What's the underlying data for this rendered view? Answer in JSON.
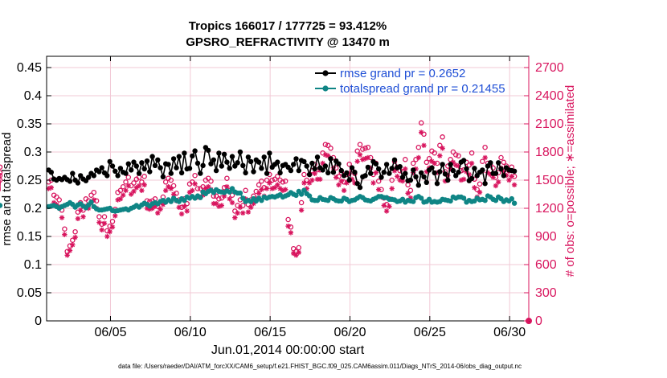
{
  "chart_data": {
    "type": "line",
    "title_line1": "Tropics 166017 / 177725 = 93.412%",
    "title_line2": "GPSRO_REFRACTIVITY @ 13470 m",
    "xlabel": "Jun.01,2014 00:00:00 start",
    "ylabel_left": "rmse and totalspread",
    "ylabel_right": "# of obs: o=possible; ∗=assimilated",
    "footer": "data file: /Users/raeder/DAI/ATM_forcXX/CAM6_setup/f.e21.FHIST_BGC.f09_025.CAM6assim.011/Diags_NTrS_2014-06/obs_diag_output.nc",
    "x_range": [
      1.0,
      31.2
    ],
    "y_left_range": [
      0,
      0.47
    ],
    "y_right_range": [
      0,
      2820
    ],
    "x_ticks": [
      5,
      10,
      15,
      20,
      25,
      30
    ],
    "x_tick_labels": [
      "06/05",
      "06/10",
      "06/15",
      "06/20",
      "06/25",
      "06/30"
    ],
    "y_left_ticks": [
      0,
      0.05,
      0.1,
      0.15,
      0.2,
      0.25,
      0.3,
      0.35,
      0.4,
      0.45
    ],
    "y_left_tick_labels": [
      "0",
      "0.05",
      "0.1",
      "0.15",
      "0.2",
      "0.25",
      "0.3",
      "0.35",
      "0.4",
      "0.45"
    ],
    "y_right_ticks": [
      0,
      300,
      600,
      900,
      1200,
      1500,
      1800,
      2100,
      2400,
      2700
    ],
    "y_right_tick_labels": [
      "0",
      "300",
      "600",
      "900",
      "1200",
      "1500",
      "1800",
      "2100",
      "2400",
      "2700"
    ],
    "colors": {
      "rmse": "#000000",
      "spread": "#0f8585",
      "obs": "#d8155e",
      "legend_text": "#1f4fd6",
      "grid": "#f2c9d6",
      "axis": "#000000"
    },
    "rmse": {
      "name": "rmse grand pr = 0.2652",
      "y": [
        0.268,
        0.264,
        0.252,
        0.25,
        0.253,
        0.251,
        0.255,
        0.251,
        0.248,
        0.262,
        0.25,
        0.245,
        0.258,
        0.252,
        0.249,
        0.255,
        0.262,
        0.258,
        0.268,
        0.265,
        0.272,
        0.263,
        0.258,
        0.283,
        0.275,
        0.266,
        0.258,
        0.271,
        0.264,
        0.262,
        0.279,
        0.268,
        0.282,
        0.275,
        0.262,
        0.281,
        0.27,
        0.284,
        0.265,
        0.292,
        0.276,
        0.286,
        0.272,
        0.256,
        0.279,
        0.278,
        0.262,
        0.288,
        0.272,
        0.292,
        0.263,
        0.298,
        0.27,
        0.271,
        0.293,
        0.302,
        0.28,
        0.262,
        0.276,
        0.308,
        0.303,
        0.279,
        0.286,
        0.267,
        0.298,
        0.275,
        0.296,
        0.282,
        0.271,
        0.292,
        0.275,
        0.281,
        0.3,
        0.276,
        0.263,
        0.291,
        0.283,
        0.265,
        0.286,
        0.282,
        0.271,
        0.291,
        0.262,
        0.298,
        0.273,
        0.278,
        0.282,
        0.263,
        0.276,
        0.278,
        0.273,
        0.267,
        0.278,
        0.288,
        0.267,
        0.285,
        0.283,
        0.275,
        0.26,
        0.28,
        0.27,
        0.291,
        0.272,
        0.268,
        0.275,
        0.263,
        0.288,
        0.264,
        0.284,
        0.279,
        0.267,
        0.258,
        0.263,
        0.25,
        0.272,
        0.264,
        0.244,
        0.237,
        0.256,
        0.258,
        0.273,
        0.262,
        0.283,
        0.279,
        0.27,
        0.255,
        0.264,
        0.278,
        0.262,
        0.271,
        0.286,
        0.272,
        0.274,
        0.255,
        0.262,
        0.249,
        0.25,
        0.268,
        0.256,
        0.241,
        0.263,
        0.256,
        0.246,
        0.268,
        0.272,
        0.263,
        0.244,
        0.265,
        0.278,
        0.261,
        0.25,
        0.278,
        0.267,
        0.258,
        0.264,
        0.282,
        0.285,
        0.27,
        0.249,
        0.253,
        0.271,
        0.258,
        0.264,
        0.268,
        0.244,
        0.275,
        0.281,
        0.262,
        0.262,
        0.281,
        0.27,
        0.258,
        0.272,
        0.268,
        0.267,
        0.266
      ]
    },
    "spread": {
      "name": "totalspread grand pr = 0.21455",
      "y": [
        0.203,
        0.204,
        0.205,
        0.203,
        0.2,
        0.203,
        0.205,
        0.207,
        0.21,
        0.207,
        0.202,
        0.206,
        0.208,
        0.204,
        0.201,
        0.206,
        0.211,
        0.203,
        0.199,
        0.197,
        0.197,
        0.198,
        0.199,
        0.2,
        0.196,
        0.195,
        0.196,
        0.197,
        0.198,
        0.199,
        0.197,
        0.2,
        0.202,
        0.205,
        0.202,
        0.206,
        0.209,
        0.207,
        0.204,
        0.208,
        0.21,
        0.208,
        0.212,
        0.214,
        0.211,
        0.215,
        0.212,
        0.218,
        0.214,
        0.212,
        0.217,
        0.214,
        0.22,
        0.218,
        0.221,
        0.218,
        0.222,
        0.219,
        0.229,
        0.226,
        0.23,
        0.232,
        0.228,
        0.233,
        0.23,
        0.229,
        0.228,
        0.231,
        0.229,
        0.235,
        0.229,
        0.227,
        0.227,
        0.218,
        0.212,
        0.214,
        0.212,
        0.217,
        0.213,
        0.218,
        0.214,
        0.22,
        0.218,
        0.22,
        0.221,
        0.22,
        0.222,
        0.224,
        0.22,
        0.222,
        0.224,
        0.228,
        0.225,
        0.223,
        0.23,
        0.225,
        0.232,
        0.226,
        0.222,
        0.215,
        0.214,
        0.214,
        0.219,
        0.216,
        0.215,
        0.214,
        0.219,
        0.217,
        0.214,
        0.213,
        0.213,
        0.218,
        0.216,
        0.212,
        0.214,
        0.215,
        0.218,
        0.221,
        0.219,
        0.215,
        0.214,
        0.213,
        0.216,
        0.218,
        0.221,
        0.221,
        0.219,
        0.219,
        0.216,
        0.216,
        0.215,
        0.212,
        0.213,
        0.216,
        0.211,
        0.214,
        0.213,
        0.212,
        0.219,
        0.221,
        0.218,
        0.211,
        0.212,
        0.216,
        0.211,
        0.212,
        0.211,
        0.212,
        0.216,
        0.215,
        0.214,
        0.213,
        0.22,
        0.218,
        0.22,
        0.22,
        0.218,
        0.211,
        0.214,
        0.212,
        0.213,
        0.218,
        0.215,
        0.216,
        0.214,
        0.222,
        0.22,
        0.216,
        0.214,
        0.22,
        0.217,
        0.212,
        0.215,
        0.213,
        0.217,
        0.209,
        0.205
      ]
    },
    "possible": {
      "name": "possible",
      "y": [
        1480,
        1500,
        1340,
        1320,
        1290,
        1180,
        980,
        740,
        800,
        860,
        950,
        1160,
        1260,
        1180,
        1300,
        1280,
        1340,
        1370,
        1280,
        1110,
        1030,
        1110,
        960,
        1010,
        1060,
        1190,
        1370,
        1390,
        1430,
        1480,
        1530,
        1440,
        1470,
        1510,
        1530,
        1480,
        1540,
        1280,
        1270,
        1280,
        1300,
        1220,
        1270,
        1320,
        1480,
        1520,
        1500,
        1440,
        1360,
        1290,
        1210,
        1300,
        1250,
        1460,
        1480,
        1550,
        1410,
        1410,
        1430,
        1500,
        1520,
        1490,
        1330,
        1330,
        1300,
        1310,
        1420,
        1520,
        1390,
        1340,
        1170,
        1230,
        1290,
        1230,
        1390,
        1240,
        1290,
        1330,
        1380,
        1450,
        1490,
        1420,
        1500,
        1560,
        1500,
        1510,
        1540,
        1500,
        1480,
        1490,
        1080,
        1000,
        770,
        740,
        780,
        1260,
        1560,
        1500,
        1560,
        1600,
        1670,
        1610,
        1610,
        1790,
        1880,
        1870,
        1840,
        1740,
        1630,
        1540,
        1580,
        1480,
        1560,
        1670,
        1610,
        1570,
        1810,
        1880,
        1830,
        1840,
        1850,
        1740,
        1560,
        1680,
        1490,
        1400,
        1310,
        1240,
        1300,
        1500,
        1700,
        1640,
        1600,
        1590,
        1720,
        1450,
        1390,
        1680,
        1720,
        1850,
        2110,
        1990,
        1690,
        1730,
        1810,
        1790,
        1680,
        1870,
        1960,
        1590,
        1650,
        1720,
        1800,
        1770,
        1760,
        1600,
        1610,
        1690,
        1660,
        1790,
        1510,
        1400,
        1460,
        1700,
        1850,
        1680,
        1660,
        1630,
        1530,
        1580,
        1740,
        1690,
        1650,
        1600,
        1640,
        1540,
        1500,
        1640,
        1580,
        1550
      ]
    },
    "assimilated": {
      "name": "assimilated",
      "y": [
        1410,
        1420,
        1260,
        1240,
        1210,
        1100,
        920,
        700,
        750,
        810,
        890,
        1090,
        1180,
        1110,
        1220,
        1200,
        1260,
        1290,
        1200,
        1050,
        970,
        1040,
        900,
        950,
        1000,
        1120,
        1290,
        1300,
        1340,
        1390,
        1440,
        1350,
        1380,
        1420,
        1440,
        1390,
        1450,
        1200,
        1190,
        1200,
        1220,
        1150,
        1190,
        1240,
        1390,
        1430,
        1410,
        1350,
        1280,
        1210,
        1140,
        1220,
        1170,
        1370,
        1390,
        1460,
        1320,
        1320,
        1340,
        1410,
        1430,
        1400,
        1250,
        1250,
        1220,
        1230,
        1330,
        1430,
        1300,
        1260,
        1100,
        1150,
        1210,
        1150,
        1300,
        1160,
        1210,
        1250,
        1300,
        1360,
        1400,
        1330,
        1410,
        1470,
        1410,
        1420,
        1450,
        1410,
        1390,
        1400,
        1010,
        940,
        720,
        700,
        730,
        1180,
        1470,
        1410,
        1470,
        1500,
        1570,
        1510,
        1510,
        1680,
        1770,
        1760,
        1730,
        1630,
        1530,
        1450,
        1490,
        1390,
        1470,
        1570,
        1510,
        1470,
        1700,
        1770,
        1720,
        1730,
        1740,
        1630,
        1470,
        1580,
        1400,
        1320,
        1230,
        1170,
        1220,
        1410,
        1600,
        1540,
        1500,
        1490,
        1620,
        1360,
        1310,
        1580,
        1620,
        1740,
        2010,
        1870,
        1590,
        1630,
        1700,
        1680,
        1580,
        1760,
        1840,
        1490,
        1550,
        1620,
        1690,
        1660,
        1650,
        1500,
        1510,
        1590,
        1560,
        1680,
        1420,
        1320,
        1370,
        1600,
        1740,
        1580,
        1560,
        1530,
        1440,
        1480,
        1630,
        1590,
        1550,
        1500,
        1540,
        1450,
        1410,
        1540,
        1480,
        1460
      ]
    },
    "legend": [
      {
        "label": "rmse grand pr = 0.2652",
        "series": "rmse"
      },
      {
        "label": "totalspread grand pr = 0.21455",
        "series": "spread"
      }
    ],
    "legend_position": "top-right",
    "grid": true
  }
}
